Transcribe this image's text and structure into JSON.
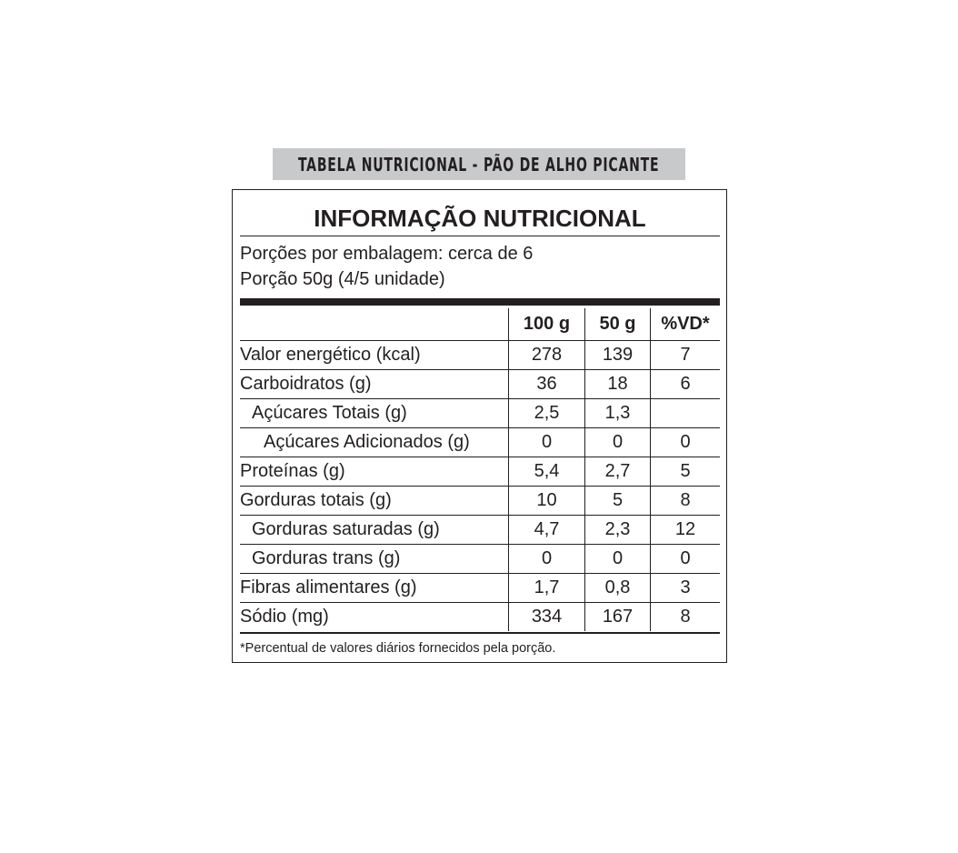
{
  "banner": "TABELA NUTRICIONAL - PÃO DE ALHO PICANTE",
  "title": "INFORMAÇÃO NUTRICIONAL",
  "servings_per_package": "Porções por embalagem: cerca de 6",
  "serving_size": "Porção 50g (4/5 unidade)",
  "columns": [
    "100 g",
    "50 g",
    "%VD*"
  ],
  "rows": [
    {
      "label": "Valor energético (kcal)",
      "indent": 0,
      "values": [
        "278",
        "139",
        "7"
      ]
    },
    {
      "label": "Carboidratos (g)",
      "indent": 0,
      "values": [
        "36",
        "18",
        "6"
      ]
    },
    {
      "label": "Açúcares Totais (g)",
      "indent": 1,
      "values": [
        "2,5",
        "1,3",
        ""
      ]
    },
    {
      "label": "Açúcares Adicionados (g)",
      "indent": 2,
      "values": [
        "0",
        "0",
        "0"
      ]
    },
    {
      "label": "Proteínas (g)",
      "indent": 0,
      "values": [
        "5,4",
        "2,7",
        "5"
      ]
    },
    {
      "label": "Gorduras totais (g)",
      "indent": 0,
      "values": [
        "10",
        "5",
        "8"
      ]
    },
    {
      "label": "Gorduras saturadas (g)",
      "indent": 1,
      "values": [
        "4,7",
        "2,3",
        "12"
      ]
    },
    {
      "label": "Gorduras trans (g)",
      "indent": 1,
      "values": [
        "0",
        "0",
        "0"
      ]
    },
    {
      "label": "Fibras alimentares (g)",
      "indent": 0,
      "values": [
        "1,7",
        "0,8",
        "3"
      ]
    },
    {
      "label": "Sódio (mg)",
      "indent": 0,
      "values": [
        "334",
        "167",
        "8"
      ]
    }
  ],
  "footnote": "*Percentual de valores diários fornecidos pela porção.",
  "colors": {
    "banner_bg": "#c8c9cb",
    "text": "#231f20"
  }
}
